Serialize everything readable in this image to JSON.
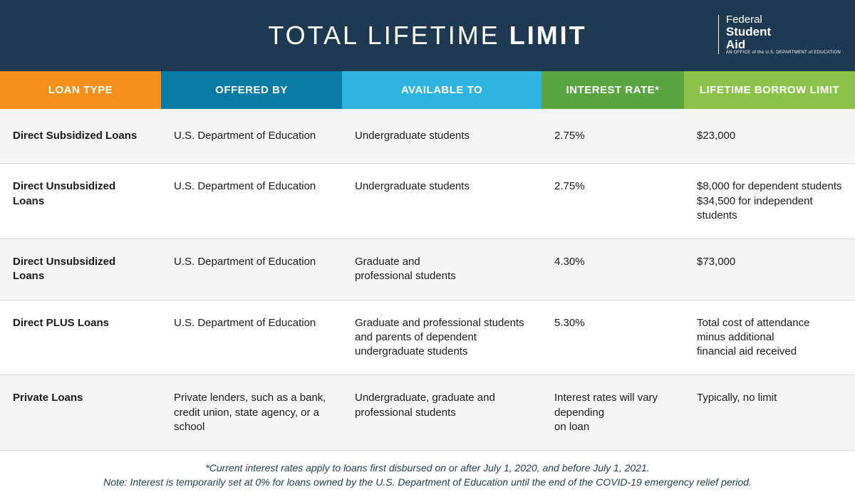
{
  "header": {
    "title_light": "TOTAL LIFETIME ",
    "title_bold": "LIMIT",
    "logo": {
      "line1": "Federal",
      "line2": "Student",
      "line3": "Aid",
      "sub": "AN OFFICE of the U.S. DEPARTMENT of EDUCATION"
    }
  },
  "columns": [
    {
      "label": "LOAN TYPE",
      "bg": "#f39019"
    },
    {
      "label": "OFFERED BY",
      "bg": "#0a7ba5"
    },
    {
      "label": "AVAILABLE TO",
      "bg": "#2db5e0"
    },
    {
      "label": "INTEREST RATE*",
      "bg": "#5aa542"
    },
    {
      "label": "LIFETIME BORROW LIMIT",
      "bg": "#8bc34a"
    }
  ],
  "rows": [
    {
      "loan_type": "Direct Subsidized Loans",
      "offered_by": "U.S. Department of Education",
      "available_to": "Undergraduate students",
      "rate": "2.75%",
      "limit": "$23,000"
    },
    {
      "loan_type": "Direct Unsubsidized Loans",
      "offered_by": "U.S. Department of Education",
      "available_to": "Undergraduate students",
      "rate": "2.75%",
      "limit": "$8,000 for dependent students\n$34,500 for independent students"
    },
    {
      "loan_type": "Direct Unsubsidized Loans",
      "offered_by": "U.S. Department of Education",
      "available_to": "Graduate and\nprofessional students",
      "rate": "4.30%",
      "limit": "$73,000"
    },
    {
      "loan_type": "Direct PLUS Loans",
      "offered_by": "U.S. Department of Education",
      "available_to": "Graduate and professional students and parents of dependent undergraduate students",
      "rate": "5.30%",
      "limit": "Total cost of attendance\nminus additional\nfinancial aid received"
    },
    {
      "loan_type": "Private Loans",
      "offered_by": "Private lenders, such as a bank, credit union, state agency, or a school",
      "available_to": "Undergraduate, graduate and professional students",
      "rate": "Interest rates will vary depending\non loan",
      "limit": "Typically, no limit"
    }
  ],
  "footer": {
    "line1": "*Current interest rates apply to loans first disbursed on or after July 1, 2020, and before July 1, 2021.",
    "line2": "Note: Interest is temporarily set at 0% for loans owned by the U.S. Department of Education until the end of the COVID-19 emergency relief period."
  }
}
